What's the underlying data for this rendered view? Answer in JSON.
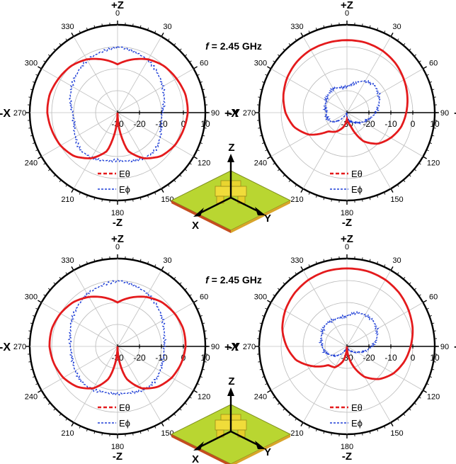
{
  "chart_data": {
    "type": "polar",
    "radial_ticks": [
      "-30",
      "-20",
      "-10",
      "0",
      "10"
    ],
    "radial_range_dB": [
      -30,
      10
    ],
    "angle_ticks": [
      "0",
      "30",
      "60",
      "90",
      "120",
      "150",
      "180",
      "210",
      "240",
      "270",
      "300",
      "330"
    ],
    "axis_labels": {
      "top": "+Z",
      "bottom": "-Z",
      "left_xz": "-X",
      "right_xz": "+X",
      "left_yz": "-Y",
      "right_yz": "+Y"
    },
    "annotation": {
      "italic": "f",
      "rest": " = 2.45 GHz"
    },
    "legend": [
      "Eθ",
      "Eϕ"
    ],
    "series_colors": {
      "E_theta": "#e41a1c",
      "E_phi": "#1f3fd6"
    },
    "grid": true,
    "plots": [
      {
        "plane": "XZ",
        "row": "top",
        "E_theta": {
          "angles_deg": [
            0,
            15,
            30,
            45,
            60,
            75,
            90,
            105,
            120,
            135,
            150,
            165,
            180,
            195,
            210,
            225,
            240,
            255,
            270,
            285,
            300,
            315,
            330,
            345
          ],
          "values_dB": [
            -8,
            -5,
            -2,
            0,
            1,
            2,
            2,
            1,
            0,
            -2,
            -6,
            -12,
            -30,
            -12,
            -6,
            -2,
            0,
            1,
            2,
            2,
            1,
            0,
            -2,
            -5
          ]
        },
        "E_phi": {
          "angles_deg": [
            0,
            15,
            30,
            45,
            60,
            75,
            90,
            105,
            120,
            135,
            150,
            165,
            180,
            195,
            210,
            225,
            240,
            255,
            270,
            285,
            300,
            315,
            330,
            345
          ],
          "values_dB": [
            0,
            -1,
            -2,
            -4,
            -6,
            -8,
            -10,
            -10,
            -8,
            -6,
            -6,
            -7,
            -8,
            -7,
            -6,
            -6,
            -8,
            -10,
            -10,
            -8,
            -6,
            -4,
            -2,
            -1
          ]
        }
      },
      {
        "plane": "YZ",
        "row": "top",
        "E_theta": {
          "angles_deg": [
            0,
            15,
            30,
            45,
            60,
            75,
            90,
            105,
            120,
            135,
            150,
            165,
            180,
            195,
            210,
            225,
            240,
            255,
            270,
            285,
            300,
            315,
            330,
            345
          ],
          "values_dB": [
            3,
            3,
            2.5,
            1.5,
            0,
            -1.5,
            -3,
            -4.5,
            -7,
            -10,
            -15,
            -24,
            -27,
            -23,
            -20,
            -18,
            -10,
            -5,
            -2,
            0,
            1.5,
            2.5,
            3,
            3
          ]
        },
        "E_phi": {
          "angles_deg": [
            0,
            15,
            30,
            45,
            60,
            75,
            90,
            105,
            120,
            135,
            150,
            165,
            180,
            195,
            210,
            225,
            240,
            255,
            270,
            285,
            300,
            315,
            330,
            345
          ],
          "values_dB": [
            -18,
            -16,
            -13,
            -12,
            -13,
            -15,
            -17,
            -20,
            -22,
            -24,
            -25,
            -26,
            -28,
            -30,
            -30,
            -25,
            -22,
            -21,
            -21,
            -20,
            -19,
            -18,
            -17,
            -18
          ]
        }
      },
      {
        "plane": "XZ",
        "row": "bottom",
        "E_theta": {
          "angles_deg": [
            0,
            15,
            30,
            45,
            60,
            75,
            90,
            105,
            120,
            135,
            150,
            165,
            180,
            195,
            210,
            225,
            240,
            255,
            270,
            285,
            300,
            315,
            330,
            345
          ],
          "values_dB": [
            -10,
            -7,
            -4,
            -1.5,
            0,
            1,
            1,
            0,
            -1.5,
            -4,
            -8,
            -15,
            -30,
            -15,
            -8,
            -4,
            -1.5,
            0,
            1,
            1,
            0,
            -1.5,
            -4,
            -7
          ]
        },
        "E_phi": {
          "angles_deg": [
            0,
            15,
            30,
            45,
            60,
            75,
            90,
            105,
            120,
            135,
            150,
            165,
            180,
            195,
            210,
            225,
            240,
            255,
            270,
            285,
            300,
            315,
            330,
            345
          ],
          "values_dB": [
            0,
            -1,
            -2,
            -4,
            -6,
            -8,
            -9,
            -9,
            -8,
            -7,
            -7,
            -8,
            -8,
            -8,
            -7,
            -7,
            -8,
            -9,
            -9,
            -8,
            -6,
            -4,
            -2,
            -1
          ]
        }
      },
      {
        "plane": "YZ",
        "row": "bottom",
        "E_theta": {
          "angles_deg": [
            0,
            15,
            30,
            45,
            60,
            75,
            90,
            105,
            120,
            135,
            150,
            165,
            180,
            195,
            210,
            225,
            240,
            255,
            270,
            285,
            300,
            315,
            330,
            345
          ],
          "values_dB": [
            5.5,
            5.5,
            5,
            4,
            2.5,
            1,
            -1,
            -3,
            -5.5,
            -9,
            -14,
            -22,
            -30,
            -23,
            -19,
            -18,
            -12,
            -6,
            -2.5,
            0.5,
            2.5,
            4,
            5,
            5.5
          ]
        },
        "E_phi": {
          "angles_deg": [
            0,
            15,
            30,
            45,
            60,
            75,
            90,
            105,
            120,
            135,
            150,
            165,
            180,
            195,
            210,
            225,
            240,
            255,
            270,
            285,
            300,
            315,
            330,
            345
          ],
          "values_dB": [
            -16,
            -14,
            -13,
            -13,
            -14,
            -16,
            -19,
            -22,
            -25,
            -27,
            -28,
            -29,
            -30,
            -29,
            -27,
            -24,
            -22,
            -20,
            -19,
            -18,
            -17,
            -16,
            -16,
            -16
          ]
        }
      }
    ],
    "inset_axes": [
      "Z",
      "X",
      "Y"
    ]
  }
}
